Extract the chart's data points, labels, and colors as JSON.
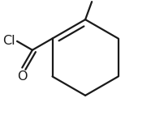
{
  "background_color": "#ffffff",
  "line_color": "#1a1a1a",
  "line_width": 1.6,
  "figsize": [
    1.86,
    1.42
  ],
  "dpi": 100,
  "label_Cl": "Cl",
  "label_O": "O",
  "label_fontsize": 11.5
}
